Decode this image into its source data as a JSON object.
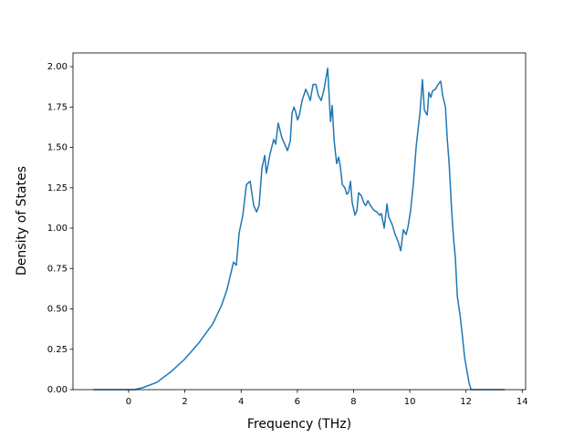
{
  "chart_data": {
    "type": "line",
    "xlabel": "Frequency (THz)",
    "ylabel": "Density of States",
    "xlim": [
      -1.98,
      14.12
    ],
    "ylim": [
      0,
      2.085
    ],
    "xticks": [
      0,
      2,
      4,
      6,
      8,
      10,
      12,
      14
    ],
    "yticks": [
      {
        "value": 0,
        "label": "0.00"
      },
      {
        "value": 0.25,
        "label": "0.25"
      },
      {
        "value": 0.5,
        "label": "0.50"
      },
      {
        "value": 0.75,
        "label": "0.75"
      },
      {
        "value": 1,
        "label": "1.00"
      },
      {
        "value": 1.25,
        "label": "1.25"
      },
      {
        "value": 1.5,
        "label": "1.50"
      },
      {
        "value": 1.75,
        "label": "1.75"
      },
      {
        "value": 2,
        "label": "2.00"
      }
    ],
    "grid": false,
    "series": [
      {
        "color": "#1f77b4",
        "x": [
          -1.25,
          0,
          0.2,
          0.5,
          1,
          1.5,
          2,
          2.5,
          3,
          3.3,
          3.5,
          3.73,
          3.83,
          3.93,
          4.06,
          4.19,
          4.32,
          4.45,
          4.55,
          4.64,
          4.74,
          4.84,
          4.9,
          5.03,
          5.16,
          5.23,
          5.32,
          5.45,
          5.65,
          5.75,
          5.81,
          5.88,
          5.94,
          6.01,
          6.07,
          6.17,
          6.3,
          6.4,
          6.46,
          6.56,
          6.66,
          6.75,
          6.85,
          6.95,
          7.08,
          7.18,
          7.24,
          7.31,
          7.4,
          7.47,
          7.53,
          7.6,
          7.69,
          7.76,
          7.82,
          7.89,
          7.95,
          8.05,
          8.12,
          8.18,
          8.28,
          8.38,
          8.44,
          8.51,
          8.6,
          8.73,
          8.83,
          8.93,
          8.99,
          9.09,
          9.19,
          9.25,
          9.38,
          9.48,
          9.58,
          9.68,
          9.77,
          9.87,
          9.94,
          10.03,
          10.13,
          10.23,
          10.36,
          10.45,
          10.52,
          10.62,
          10.68,
          10.75,
          10.81,
          10.91,
          11.01,
          11.1,
          11.17,
          11.27,
          11.33,
          11.4,
          11.49,
          11.56,
          11.62,
          11.69,
          11.79,
          11.88,
          11.95,
          12.05,
          12.11,
          12.18,
          12.5,
          13.38
        ],
        "values": [
          0,
          0,
          0,
          0.012,
          0.045,
          0.11,
          0.19,
          0.29,
          0.41,
          0.52,
          0.62,
          0.79,
          0.77,
          0.97,
          1.08,
          1.27,
          1.29,
          1.14,
          1.1,
          1.14,
          1.37,
          1.45,
          1.34,
          1.46,
          1.55,
          1.52,
          1.65,
          1.56,
          1.48,
          1.54,
          1.71,
          1.75,
          1.72,
          1.67,
          1.7,
          1.79,
          1.86,
          1.82,
          1.79,
          1.89,
          1.89,
          1.82,
          1.79,
          1.86,
          1.99,
          1.66,
          1.76,
          1.54,
          1.4,
          1.44,
          1.38,
          1.27,
          1.25,
          1.21,
          1.22,
          1.29,
          1.16,
          1.08,
          1.11,
          1.22,
          1.2,
          1.15,
          1.14,
          1.17,
          1.14,
          1.11,
          1.1,
          1.08,
          1.09,
          1,
          1.15,
          1.07,
          1.02,
          0.96,
          0.92,
          0.86,
          0.99,
          0.96,
          1.01,
          1.11,
          1.28,
          1.51,
          1.71,
          1.92,
          1.73,
          1.7,
          1.84,
          1.81,
          1.85,
          1.86,
          1.89,
          1.91,
          1.82,
          1.75,
          1.56,
          1.4,
          1.11,
          0.93,
          0.82,
          0.58,
          0.46,
          0.32,
          0.2,
          0.1,
          0.04,
          0,
          0,
          0
        ]
      }
    ]
  }
}
